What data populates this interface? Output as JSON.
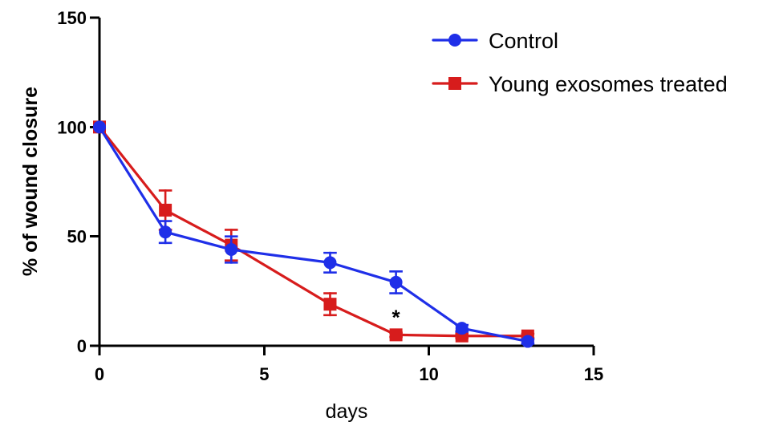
{
  "chart_data": {
    "type": "line",
    "title": "",
    "xlabel": "days",
    "ylabel": "% of wound closure",
    "xlim": [
      0,
      15
    ],
    "ylim": [
      0,
      150
    ],
    "x_ticks": [
      0,
      5,
      10,
      15
    ],
    "y_ticks": [
      0,
      50,
      100,
      150
    ],
    "tick_labels": {
      "x": [
        "0",
        "5",
        "10",
        "15"
      ],
      "y": [
        "0",
        "50",
        "100",
        "150"
      ]
    },
    "grid": false,
    "legend": {
      "placement": "top-right",
      "entries": [
        "Control",
        "Young exosomes treated"
      ]
    },
    "series": [
      {
        "name": "Control",
        "color": "#1f2fe8",
        "marker": "circle",
        "x": [
          0,
          2,
          4,
          7,
          9,
          11,
          13
        ],
        "y": [
          100,
          52,
          44,
          38,
          29,
          8,
          2
        ],
        "error": [
          0,
          5,
          6,
          4.5,
          5,
          1.5,
          1
        ]
      },
      {
        "name": "Young exosomes treated",
        "color": "#d71c1c",
        "marker": "square",
        "x": [
          0,
          2,
          4,
          7,
          9,
          11,
          13
        ],
        "y": [
          100,
          62,
          46,
          19,
          5,
          4.5,
          4.5
        ],
        "error": [
          0,
          9,
          7,
          5,
          1,
          1,
          1
        ]
      }
    ],
    "annotations": [
      {
        "text": "*",
        "x": 9,
        "y": 5
      }
    ]
  }
}
